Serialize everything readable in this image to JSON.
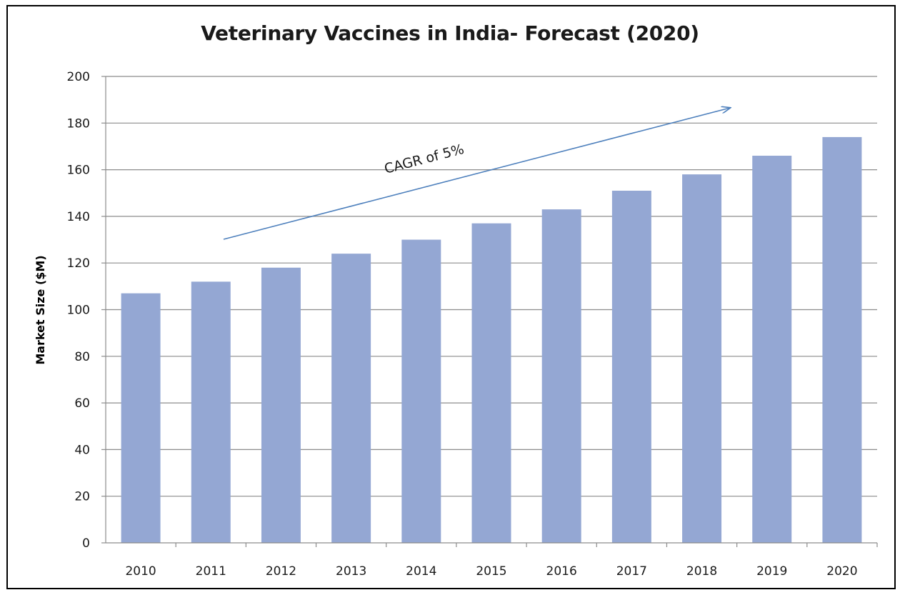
{
  "chart_data": {
    "type": "bar",
    "title": "Veterinary Vaccines in India- Forecast (2020)",
    "xlabel": "",
    "ylabel": "Market Size ($M)",
    "categories": [
      "2010",
      "2011",
      "2012",
      "2013",
      "2014",
      "2015",
      "2016",
      "2017",
      "2018",
      "2019",
      "2020"
    ],
    "values": [
      107,
      112,
      118,
      124,
      130,
      137,
      143,
      151,
      158,
      166,
      174
    ],
    "ylim": [
      0,
      200
    ],
    "yticks": [
      "0",
      "20",
      "40",
      "60",
      "80",
      "100",
      "120",
      "140",
      "160",
      "180",
      "200"
    ],
    "grid": true,
    "legend": "none",
    "bar_color": "#94a7d3",
    "annotation": {
      "text": "CAGR of 5%",
      "arrow_color": "#4f81bd"
    }
  }
}
